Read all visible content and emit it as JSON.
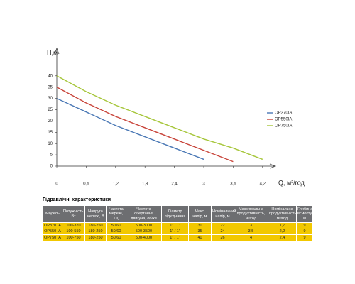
{
  "chart_data": {
    "type": "line",
    "y_label": "H,м",
    "x_label": "Q, м³/год",
    "xlim": [
      0,
      4.4
    ],
    "ylim": [
      0,
      45
    ],
    "xticks": [
      0,
      {
        "value": 0.6,
        "label": "0,6"
      },
      {
        "value": 1.2,
        "label": "1,2"
      },
      {
        "value": 1.8,
        "label": "1,8"
      },
      {
        "value": 2.4,
        "label": "2,4"
      },
      3,
      {
        "value": 3.6,
        "label": "3,6"
      },
      {
        "value": 4.2,
        "label": "4,2"
      }
    ],
    "yticks": [
      0,
      5,
      10,
      15,
      20,
      25,
      30,
      35,
      40
    ],
    "legend": "right",
    "series": [
      {
        "name": "OP370IA",
        "color": "#4a78b5",
        "x": [
          0,
          0.6,
          1.2,
          1.8,
          2.4,
          3
        ],
        "values": [
          30,
          24,
          18,
          13,
          8,
          3
        ]
      },
      {
        "name": "OP550IA",
        "color": "#c8443a",
        "x": [
          0,
          0.6,
          1.2,
          1.8,
          2.4,
          3,
          3.6
        ],
        "values": [
          35,
          28,
          22,
          17,
          12,
          7,
          2
        ]
      },
      {
        "name": "OP750IA",
        "color": "#a6c63a",
        "x": [
          0,
          0.6,
          1.2,
          1.8,
          2.4,
          3,
          3.6,
          4.2
        ],
        "values": [
          40,
          33,
          27,
          22,
          17,
          12,
          8,
          3
        ]
      }
    ]
  },
  "table": {
    "title": "Гідравлічні характеристики",
    "header": [
      "Модель",
      "Потужність, Вт",
      "Напруга мережі, В",
      "Частота мережі, Гц",
      "Частота обертання двигуна, об/хв",
      "Діаметр під'єднання",
      "Макс. напір, м",
      "Номінальний напір, м",
      "Максимальна продуктивність, м³/год",
      "Номінальна продуктивність, м³/год",
      "Глибина всмоктування, м"
    ],
    "rows": [
      [
        "OP370 IA",
        "100-370",
        "180-250",
        "50/60",
        "500-3000",
        "1\" / 1\"",
        "30",
        "22",
        "3",
        "1,7",
        "9"
      ],
      [
        "OP550 IA",
        "100-550",
        "180-250",
        "50/60",
        "500-3500",
        "1\" / 1\"",
        "35",
        "24",
        "3,5",
        "2,2",
        "9"
      ],
      [
        "OP750 IA",
        "100-750",
        "180-250",
        "50/60",
        "500-4000",
        "1\" / 1\"",
        "40",
        "26",
        "4",
        "2,4",
        "9"
      ]
    ]
  }
}
